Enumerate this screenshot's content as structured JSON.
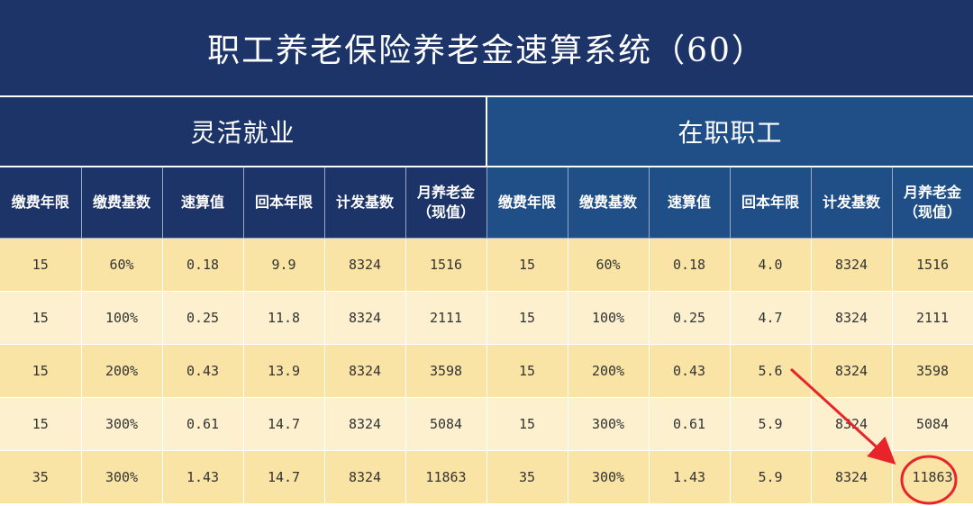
{
  "title": "职工养老保险养老金速算系统（60）",
  "sections": {
    "left": "灵活就业",
    "right": "在职职工"
  },
  "columns": [
    {
      "l1": "缴费年限",
      "l2": ""
    },
    {
      "l1": "缴费基数",
      "l2": ""
    },
    {
      "l1": "速算值",
      "l2": ""
    },
    {
      "l1": "回本年限",
      "l2": ""
    },
    {
      "l1": "计发基数",
      "l2": ""
    },
    {
      "l1": "月养老金",
      "l2": "（现值）"
    },
    {
      "l1": "缴费年限",
      "l2": ""
    },
    {
      "l1": "缴费基数",
      "l2": ""
    },
    {
      "l1": "速算值",
      "l2": ""
    },
    {
      "l1": "回本年限",
      "l2": ""
    },
    {
      "l1": "计发基数",
      "l2": ""
    },
    {
      "l1": "月养老金",
      "l2": "（现值）"
    }
  ],
  "rows": [
    [
      "15",
      "60%",
      "0.18",
      "9.9",
      "8324",
      "1516",
      "15",
      "60%",
      "0.18",
      "4.0",
      "8324",
      "1516"
    ],
    [
      "15",
      "100%",
      "0.25",
      "11.8",
      "8324",
      "2111",
      "15",
      "100%",
      "0.25",
      "4.7",
      "8324",
      "2111"
    ],
    [
      "15",
      "200%",
      "0.43",
      "13.9",
      "8324",
      "3598",
      "15",
      "200%",
      "0.43",
      "5.6",
      "8324",
      "3598"
    ],
    [
      "15",
      "300%",
      "0.61",
      "14.7",
      "8324",
      "5084",
      "15",
      "300%",
      "0.61",
      "5.9",
      "8324",
      "5084"
    ],
    [
      "35",
      "300%",
      "1.43",
      "14.7",
      "8324",
      "11863",
      "35",
      "300%",
      "1.43",
      "5.9",
      "8324",
      "11863"
    ]
  ],
  "colors": {
    "title_bg": "#1d3469",
    "right_header_bg": "#1f4f86",
    "row_odd": "#f9e4a6",
    "row_even": "#fcf0cf",
    "annotation": "#e8232a"
  },
  "annotation": {
    "type": "red-arrow-and-circle",
    "highlighted_value": "11863"
  }
}
